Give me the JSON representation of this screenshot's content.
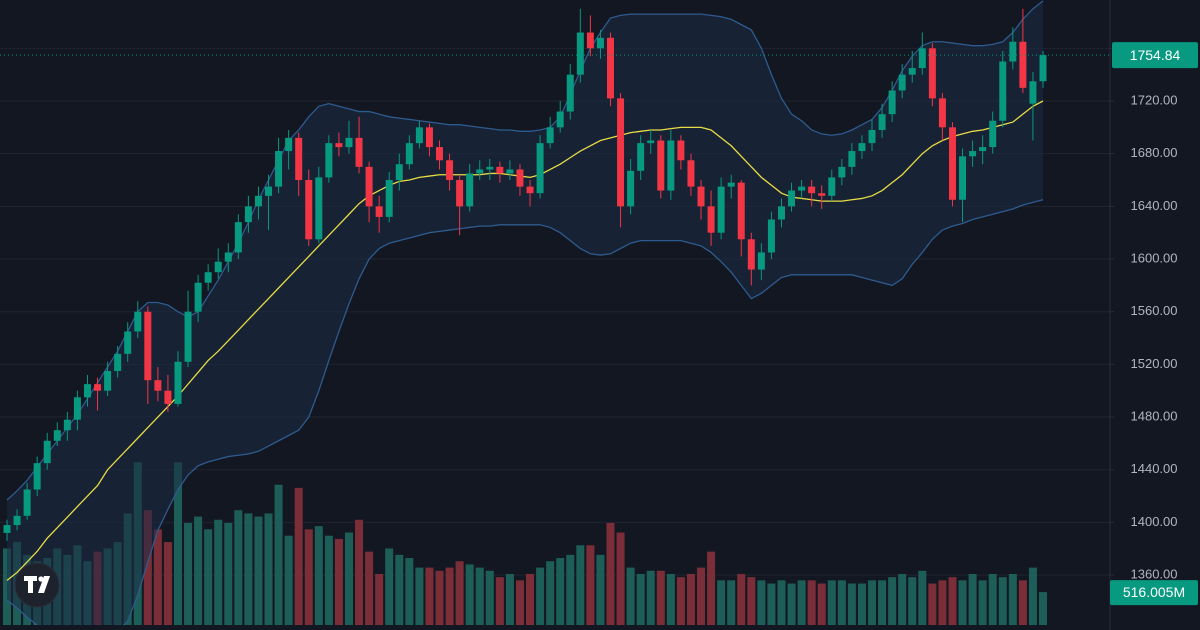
{
  "chart_data": {
    "type": "candlestick",
    "open": [
      1392,
      1398,
      1405,
      1425,
      1445,
      1462,
      1470,
      1478,
      1495,
      1505,
      1500,
      1515,
      1528,
      1545,
      1560,
      1508,
      1500,
      1490,
      1522,
      1560,
      1582,
      1590,
      1598,
      1605,
      1628,
      1640,
      1648,
      1655,
      1682,
      1692,
      1660,
      1615,
      1662,
      1688,
      1685,
      1692,
      1670,
      1640,
      1632,
      1660,
      1672,
      1688,
      1700,
      1685,
      1675,
      1660,
      1640,
      1665,
      1668,
      1670,
      1665,
      1668,
      1655,
      1650,
      1688,
      1700,
      1712,
      1740,
      1772,
      1760,
      1768,
      1722,
      1640,
      1667,
      1688,
      1690,
      1652,
      1690,
      1675,
      1655,
      1640,
      1620,
      1655,
      1658,
      1615,
      1592,
      1605,
      1630,
      1640,
      1652,
      1655,
      1650,
      1648,
      1662,
      1670,
      1682,
      1688,
      1698,
      1710,
      1728,
      1740,
      1745,
      1760,
      1722,
      1700,
      1645,
      1678,
      1682,
      1685,
      1705,
      1750,
      1765,
      1718,
      1735
    ],
    "high": [
      1402,
      1410,
      1430,
      1450,
      1468,
      1476,
      1484,
      1500,
      1512,
      1510,
      1522,
      1534,
      1552,
      1568,
      1564,
      1518,
      1512,
      1530,
      1576,
      1588,
      1596,
      1608,
      1612,
      1634,
      1648,
      1655,
      1664,
      1692,
      1698,
      1696,
      1668,
      1670,
      1694,
      1696,
      1705,
      1708,
      1674,
      1648,
      1666,
      1680,
      1694,
      1705,
      1703,
      1690,
      1680,
      1664,
      1672,
      1675,
      1676,
      1674,
      1675,
      1672,
      1660,
      1694,
      1708,
      1720,
      1748,
      1790,
      1785,
      1774,
      1772,
      1726,
      1676,
      1694,
      1698,
      1694,
      1698,
      1694,
      1680,
      1660,
      1652,
      1662,
      1664,
      1660,
      1620,
      1612,
      1636,
      1646,
      1658,
      1660,
      1660,
      1656,
      1668,
      1676,
      1688,
      1694,
      1706,
      1718,
      1735,
      1748,
      1758,
      1772,
      1764,
      1726,
      1704,
      1684,
      1690,
      1694,
      1712,
      1758,
      1776,
      1790,
      1742,
      1758
    ],
    "low": [
      1386,
      1394,
      1402,
      1420,
      1440,
      1458,
      1462,
      1470,
      1488,
      1485,
      1496,
      1510,
      1522,
      1540,
      1490,
      1492,
      1484,
      1488,
      1518,
      1552,
      1576,
      1585,
      1590,
      1600,
      1620,
      1630,
      1622,
      1650,
      1668,
      1648,
      1610,
      1612,
      1658,
      1678,
      1680,
      1665,
      1628,
      1620,
      1628,
      1652,
      1668,
      1684,
      1678,
      1668,
      1652,
      1618,
      1636,
      1660,
      1660,
      1658,
      1660,
      1648,
      1640,
      1646,
      1684,
      1696,
      1706,
      1734,
      1754,
      1752,
      1716,
      1624,
      1634,
      1660,
      1680,
      1646,
      1645,
      1668,
      1648,
      1630,
      1610,
      1615,
      1646,
      1602,
      1580,
      1584,
      1600,
      1624,
      1636,
      1646,
      1640,
      1638,
      1644,
      1656,
      1664,
      1676,
      1682,
      1692,
      1704,
      1722,
      1734,
      1740,
      1716,
      1690,
      1640,
      1628,
      1670,
      1672,
      1680,
      1700,
      1744,
      1726,
      1690,
      1730
    ],
    "close": [
      1398,
      1405,
      1425,
      1445,
      1462,
      1470,
      1478,
      1495,
      1505,
      1500,
      1515,
      1528,
      1545,
      1560,
      1508,
      1500,
      1490,
      1522,
      1560,
      1582,
      1590,
      1598,
      1605,
      1628,
      1640,
      1648,
      1655,
      1682,
      1692,
      1660,
      1615,
      1662,
      1688,
      1685,
      1692,
      1670,
      1640,
      1632,
      1660,
      1672,
      1688,
      1700,
      1685,
      1675,
      1660,
      1640,
      1665,
      1668,
      1670,
      1665,
      1668,
      1655,
      1650,
      1688,
      1700,
      1712,
      1740,
      1772,
      1760,
      1768,
      1722,
      1640,
      1667,
      1688,
      1690,
      1652,
      1690,
      1675,
      1655,
      1640,
      1620,
      1655,
      1658,
      1615,
      1592,
      1605,
      1630,
      1640,
      1652,
      1655,
      1650,
      1648,
      1662,
      1670,
      1682,
      1688,
      1698,
      1710,
      1728,
      1740,
      1745,
      1760,
      1722,
      1700,
      1645,
      1678,
      1682,
      1685,
      1705,
      1750,
      1765,
      1730,
      1735,
      1754.84
    ],
    "volume": [
      1200,
      1300,
      1100,
      1000,
      1050,
      1200,
      1100,
      1250,
      1000,
      1150,
      1200,
      1300,
      1750,
      2550,
      1800,
      1500,
      1300,
      2550,
      1600,
      1700,
      1500,
      1650,
      1600,
      1800,
      1750,
      1700,
      1750,
      2200,
      1400,
      2150,
      1500,
      1550,
      1400,
      1350,
      1450,
      1650,
      1150,
      800,
      1200,
      1100,
      1050,
      900,
      900,
      850,
      900,
      1000,
      950,
      900,
      850,
      750,
      800,
      700,
      800,
      900,
      1000,
      1050,
      1100,
      1250,
      1250,
      1100,
      1600,
      1450,
      900,
      800,
      850,
      850,
      800,
      750,
      800,
      900,
      1150,
      700,
      700,
      800,
      750,
      700,
      650,
      700,
      650,
      700,
      700,
      650,
      700,
      700,
      650,
      650,
      700,
      700,
      750,
      800,
      750,
      850,
      650,
      700,
      750,
      700,
      800,
      700,
      800,
      750,
      800,
      700,
      900,
      516.005
    ],
    "volume_label": "516.005M",
    "bands": {
      "middle": [
        1356,
        1362,
        1370,
        1378,
        1388,
        1396,
        1404,
        1412,
        1420,
        1428,
        1440,
        1448,
        1456,
        1464,
        1472,
        1480,
        1488,
        1496,
        1505,
        1514,
        1523,
        1530,
        1538,
        1546,
        1554,
        1562,
        1570,
        1578,
        1586,
        1594,
        1602,
        1610,
        1618,
        1626,
        1634,
        1642,
        1648,
        1652,
        1656,
        1659,
        1660,
        1662,
        1663,
        1664,
        1664,
        1664,
        1664,
        1664,
        1665,
        1665,
        1664,
        1663,
        1662,
        1664,
        1668,
        1672,
        1677,
        1682,
        1686,
        1690,
        1692,
        1694,
        1696,
        1697,
        1698,
        1698,
        1699,
        1700,
        1700,
        1700,
        1698,
        1692,
        1686,
        1678,
        1670,
        1662,
        1656,
        1650,
        1647,
        1646,
        1645,
        1644,
        1644,
        1644,
        1645,
        1646,
        1648,
        1652,
        1658,
        1664,
        1672,
        1680,
        1686,
        1690,
        1693,
        1695,
        1697,
        1698,
        1700,
        1702,
        1704,
        1710,
        1716,
        1720
      ],
      "upper": [
        1417,
        1424,
        1432,
        1442,
        1452,
        1462,
        1472,
        1482,
        1494,
        1506,
        1518,
        1530,
        1545,
        1560,
        1567,
        1567,
        1565,
        1560,
        1556,
        1560,
        1572,
        1584,
        1598,
        1612,
        1628,
        1645,
        1660,
        1675,
        1690,
        1698,
        1708,
        1716,
        1718,
        1716,
        1714,
        1712,
        1712,
        1710,
        1708,
        1707,
        1706,
        1705,
        1704,
        1703,
        1702,
        1702,
        1701,
        1700,
        1699,
        1698,
        1698,
        1697,
        1697,
        1698,
        1700,
        1708,
        1725,
        1743,
        1760,
        1772,
        1783,
        1785,
        1786,
        1786,
        1786,
        1786,
        1786,
        1786,
        1786,
        1786,
        1785,
        1784,
        1782,
        1778,
        1774,
        1760,
        1740,
        1722,
        1710,
        1705,
        1698,
        1695,
        1694,
        1695,
        1698,
        1702,
        1706,
        1715,
        1728,
        1743,
        1754,
        1762,
        1765,
        1765,
        1764,
        1763,
        1762,
        1762,
        1763,
        1765,
        1772,
        1782,
        1790,
        1796
      ],
      "lower": [
        1341,
        1335,
        1328,
        1322,
        1316,
        1312,
        1308,
        1306,
        1305,
        1306,
        1310,
        1318,
        1325,
        1345,
        1370,
        1394,
        1410,
        1425,
        1436,
        1443,
        1446,
        1448,
        1450,
        1451,
        1452,
        1454,
        1458,
        1462,
        1466,
        1470,
        1480,
        1500,
        1523,
        1545,
        1566,
        1585,
        1600,
        1608,
        1612,
        1614,
        1616,
        1618,
        1620,
        1621,
        1622,
        1623,
        1624,
        1625,
        1625,
        1626,
        1626,
        1626,
        1626,
        1626,
        1624,
        1620,
        1614,
        1608,
        1604,
        1603,
        1604,
        1608,
        1612,
        1614,
        1614,
        1614,
        1614,
        1614,
        1612,
        1610,
        1605,
        1598,
        1590,
        1580,
        1570,
        1574,
        1580,
        1586,
        1588,
        1588,
        1588,
        1588,
        1588,
        1588,
        1588,
        1586,
        1584,
        1582,
        1580,
        1585,
        1596,
        1605,
        1615,
        1622,
        1625,
        1627,
        1630,
        1632,
        1634,
        1636,
        1638,
        1641,
        1643,
        1645
      ]
    },
    "colors": {
      "up": "#089981",
      "down": "#f23645",
      "up_volume": "#1d5f58",
      "down_volume": "#7c2e38",
      "middle": "#e8dc45",
      "band": "#2e5b8e",
      "band_fill": "#1c2b45"
    },
    "ylim": [
      1318.3,
      1796.7
    ],
    "yticks": [
      {
        "value": 1360,
        "label": "1360.00"
      },
      {
        "value": 1400,
        "label": "1400.00"
      },
      {
        "value": 1440,
        "label": "1440.00"
      },
      {
        "value": 1480,
        "label": "1480.00"
      },
      {
        "value": 1520,
        "label": "1520.00"
      },
      {
        "value": 1560,
        "label": "1560.00"
      },
      {
        "value": 1600,
        "label": "1600.00"
      },
      {
        "value": 1640,
        "label": "1640.00"
      },
      {
        "value": 1680,
        "label": "1680.00"
      },
      {
        "value": 1720,
        "label": "1720.00"
      },
      {
        "value": 1760,
        "label": "1760.00"
      }
    ],
    "volume_lim": [
      0,
      9800
    ],
    "grid": true
  }
}
